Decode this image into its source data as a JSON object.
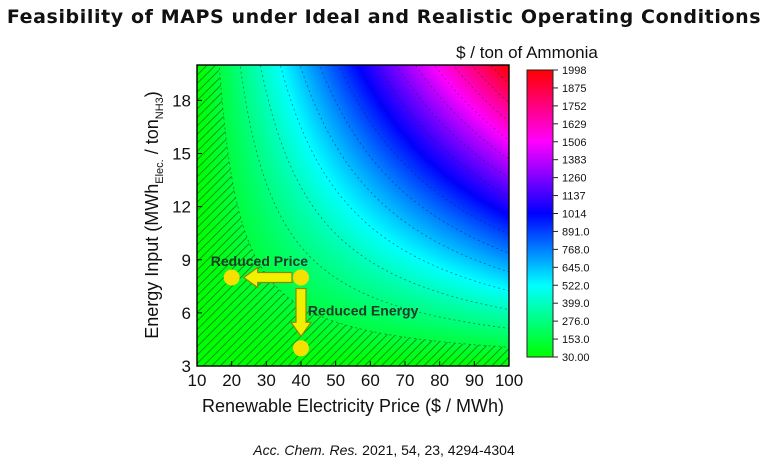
{
  "title": "Feasibility of MAPS under Ideal and Realistic Operating Conditions",
  "citation": {
    "journal": "Acc. Chem. Res.",
    "details": " 2021, 54, 23, 4294-4304"
  },
  "chart_data": {
    "type": "heatmap",
    "xlabel": "Renewable Electricity Price ($ / MWh)",
    "ylabel_main": "Energy Input (MWh",
    "ylabel_sub1": "Elec.",
    "ylabel_mid": " / ton",
    "ylabel_sub2": "NH3",
    "ylabel_end": ")",
    "xlim": [
      10,
      100
    ],
    "ylim": [
      3,
      20
    ],
    "x_ticks": [
      10,
      20,
      30,
      40,
      50,
      60,
      70,
      80,
      90,
      100
    ],
    "y_ticks": [
      3,
      6,
      9,
      12,
      15,
      18
    ],
    "colorbar": {
      "title": "$ / ton of Ammonia",
      "range": [
        30,
        1998
      ],
      "tick_labels": [
        "1998",
        "1875",
        "1752",
        "1629",
        "1506",
        "1383",
        "1260",
        "1137",
        "1014",
        "891.0",
        "768.0",
        "645.0",
        "522.0",
        "399.0",
        "276.0",
        "153.0",
        "30.00"
      ]
    },
    "contour_levels": [
      153,
      276,
      399,
      522,
      645,
      768,
      891,
      1014,
      1137,
      1260,
      1383,
      1506,
      1629,
      1752,
      1875
    ],
    "colors": {
      "low": "#00ff00",
      "mid_low": "#00ffff",
      "mid": "#0000ff",
      "mid_high": "#ff00ff",
      "high": "#ff0000",
      "marker": "#f5e000",
      "arrow_fill": "#f0f000",
      "arrow_stroke": "#8a8a00",
      "hatch": "#0a6a0a"
    },
    "points": [
      {
        "x": 40,
        "y": 8
      },
      {
        "x": 20,
        "y": 8
      },
      {
        "x": 40,
        "y": 4
      }
    ],
    "annotations": [
      {
        "text": "Reduced Price",
        "x": 28,
        "y": 9
      },
      {
        "text": "Reduced Energy",
        "x": 42,
        "y": 6.2
      }
    ]
  }
}
